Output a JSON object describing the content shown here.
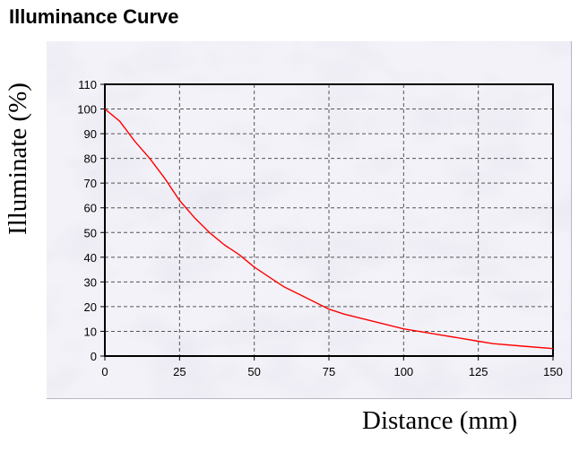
{
  "chart_data": {
    "type": "line",
    "title": "Illuminance Curve",
    "xlabel": "Distance (mm)",
    "ylabel": "Illuminate (%)",
    "xlim": [
      0,
      150
    ],
    "ylim": [
      0,
      110
    ],
    "xticks": [
      0,
      25,
      50,
      75,
      100,
      125,
      150
    ],
    "yticks": [
      0,
      10,
      20,
      30,
      40,
      50,
      60,
      70,
      80,
      90,
      100,
      110
    ],
    "grid": true,
    "legend": "none",
    "series": [
      {
        "color": "#ff0000",
        "x": [
          0,
          5,
          10,
          15,
          20,
          25,
          30,
          35,
          40,
          45,
          50,
          55,
          60,
          65,
          70,
          75,
          80,
          90,
          100,
          110,
          120,
          125,
          130,
          140,
          150
        ],
        "y": [
          100,
          95,
          87,
          80,
          72,
          63,
          56,
          50,
          45,
          41,
          36,
          32,
          28,
          25,
          22,
          19,
          17,
          14,
          11,
          9,
          7,
          6,
          5,
          4,
          3
        ]
      }
    ]
  }
}
